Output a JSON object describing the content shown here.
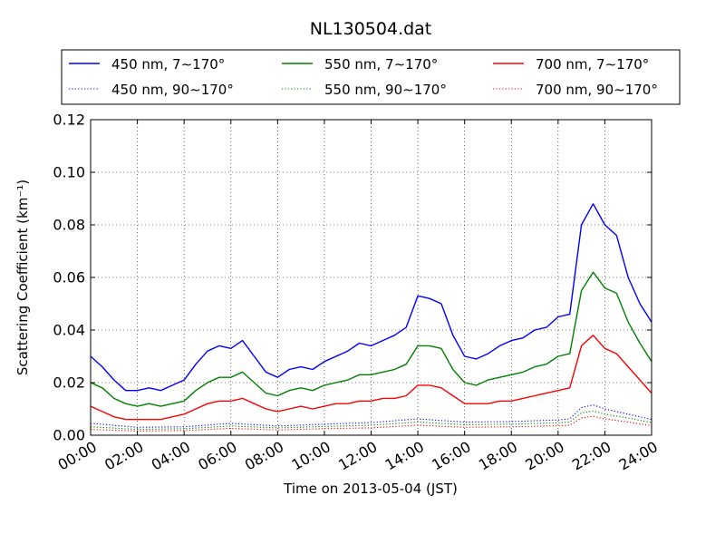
{
  "chart_data": {
    "type": "line",
    "title": "NL130504.dat",
    "xlabel": "Time on 2013-05-04 (JST)",
    "ylabel": "Scattering Coefficient (km⁻¹)",
    "xlim": [
      "00:00",
      "24:00"
    ],
    "ylim": [
      0,
      0.12
    ],
    "x_ticks": [
      "00:00",
      "02:00",
      "04:00",
      "06:00",
      "08:00",
      "10:00",
      "12:00",
      "14:00",
      "16:00",
      "18:00",
      "20:00",
      "22:00",
      "24:00"
    ],
    "y_ticks": [
      "0.00",
      "0.02",
      "0.04",
      "0.06",
      "0.08",
      "0.10",
      "0.12"
    ],
    "grid": true,
    "legend_position": "top (above plot), 3 columns",
    "series": [
      {
        "name": "450 nm, 7∼170°",
        "color": "#0000ff",
        "style": "solid",
        "x": [
          "00:00",
          "00:30",
          "01:00",
          "01:30",
          "02:00",
          "02:30",
          "03:00",
          "03:30",
          "04:00",
          "04:30",
          "05:00",
          "05:30",
          "06:00",
          "06:30",
          "07:00",
          "07:30",
          "08:00",
          "08:30",
          "09:00",
          "09:30",
          "10:00",
          "10:30",
          "11:00",
          "11:30",
          "12:00",
          "12:30",
          "13:00",
          "13:30",
          "14:00",
          "14:30",
          "15:00",
          "15:30",
          "16:00",
          "16:30",
          "17:00",
          "17:30",
          "18:00",
          "18:30",
          "19:00",
          "19:30",
          "20:00",
          "20:30",
          "21:00",
          "21:30",
          "22:00",
          "22:30",
          "23:00",
          "23:30",
          "24:00"
        ],
        "values": [
          0.03,
          0.026,
          0.021,
          0.017,
          0.017,
          0.018,
          0.017,
          0.019,
          0.021,
          0.027,
          0.032,
          0.034,
          0.033,
          0.036,
          0.03,
          0.024,
          0.022,
          0.025,
          0.026,
          0.025,
          0.028,
          0.03,
          0.032,
          0.035,
          0.034,
          0.036,
          0.038,
          0.041,
          0.053,
          0.052,
          0.05,
          0.038,
          0.03,
          0.029,
          0.031,
          0.034,
          0.036,
          0.037,
          0.04,
          0.041,
          0.045,
          0.046,
          0.08,
          0.088,
          0.08,
          0.076,
          0.06,
          0.05,
          0.043
        ]
      },
      {
        "name": "550 nm, 7∼170°",
        "color": "#008000",
        "style": "solid",
        "x": [
          "00:00",
          "00:30",
          "01:00",
          "01:30",
          "02:00",
          "02:30",
          "03:00",
          "03:30",
          "04:00",
          "04:30",
          "05:00",
          "05:30",
          "06:00",
          "06:30",
          "07:00",
          "07:30",
          "08:00",
          "08:30",
          "09:00",
          "09:30",
          "10:00",
          "10:30",
          "11:00",
          "11:30",
          "12:00",
          "12:30",
          "13:00",
          "13:30",
          "14:00",
          "14:30",
          "15:00",
          "15:30",
          "16:00",
          "16:30",
          "17:00",
          "17:30",
          "18:00",
          "18:30",
          "19:00",
          "19:30",
          "20:00",
          "20:30",
          "21:00",
          "21:30",
          "22:00",
          "22:30",
          "23:00",
          "23:30",
          "24:00"
        ],
        "values": [
          0.02,
          0.018,
          0.014,
          0.012,
          0.011,
          0.012,
          0.011,
          0.012,
          0.013,
          0.017,
          0.02,
          0.022,
          0.022,
          0.024,
          0.02,
          0.016,
          0.015,
          0.017,
          0.018,
          0.017,
          0.019,
          0.02,
          0.021,
          0.023,
          0.023,
          0.024,
          0.025,
          0.027,
          0.034,
          0.034,
          0.033,
          0.025,
          0.02,
          0.019,
          0.021,
          0.022,
          0.023,
          0.024,
          0.026,
          0.027,
          0.03,
          0.031,
          0.055,
          0.062,
          0.056,
          0.054,
          0.043,
          0.035,
          0.028
        ]
      },
      {
        "name": "700 nm, 7∼170°",
        "color": "#ff0000",
        "style": "solid",
        "x": [
          "00:00",
          "00:30",
          "01:00",
          "01:30",
          "02:00",
          "02:30",
          "03:00",
          "03:30",
          "04:00",
          "04:30",
          "05:00",
          "05:30",
          "06:00",
          "06:30",
          "07:00",
          "07:30",
          "08:00",
          "08:30",
          "09:00",
          "09:30",
          "10:00",
          "10:30",
          "11:00",
          "11:30",
          "12:00",
          "12:30",
          "13:00",
          "13:30",
          "14:00",
          "14:30",
          "15:00",
          "15:30",
          "16:00",
          "16:30",
          "17:00",
          "17:30",
          "18:00",
          "18:30",
          "19:00",
          "19:30",
          "20:00",
          "20:30",
          "21:00",
          "21:30",
          "22:00",
          "22:30",
          "23:00",
          "23:30",
          "24:00"
        ],
        "values": [
          0.011,
          0.009,
          0.007,
          0.006,
          0.006,
          0.006,
          0.006,
          0.007,
          0.008,
          0.01,
          0.012,
          0.013,
          0.013,
          0.014,
          0.012,
          0.01,
          0.009,
          0.01,
          0.011,
          0.01,
          0.011,
          0.012,
          0.012,
          0.013,
          0.013,
          0.014,
          0.014,
          0.015,
          0.019,
          0.019,
          0.018,
          0.015,
          0.012,
          0.012,
          0.012,
          0.013,
          0.013,
          0.014,
          0.015,
          0.016,
          0.017,
          0.018,
          0.034,
          0.038,
          0.033,
          0.031,
          0.026,
          0.021,
          0.016
        ]
      },
      {
        "name": "450 nm, 90∼170°",
        "color": "#0000ff",
        "style": "dotted",
        "x": [
          "00:00",
          "02:00",
          "04:00",
          "06:00",
          "08:00",
          "10:00",
          "12:00",
          "14:00",
          "16:00",
          "18:00",
          "20:00",
          "20:30",
          "21:00",
          "21:30",
          "22:00",
          "23:00",
          "24:00"
        ],
        "values": [
          0.0045,
          0.003,
          0.0032,
          0.0045,
          0.0035,
          0.0042,
          0.0048,
          0.0062,
          0.005,
          0.0052,
          0.0058,
          0.0062,
          0.0105,
          0.0115,
          0.01,
          0.008,
          0.006
        ]
      },
      {
        "name": "550 nm, 90∼170°",
        "color": "#008000",
        "style": "dotted",
        "x": [
          "00:00",
          "02:00",
          "04:00",
          "06:00",
          "08:00",
          "10:00",
          "12:00",
          "14:00",
          "16:00",
          "18:00",
          "20:00",
          "20:30",
          "21:00",
          "21:30",
          "22:00",
          "23:00",
          "24:00"
        ],
        "values": [
          0.0032,
          0.0022,
          0.0025,
          0.0035,
          0.0028,
          0.0033,
          0.0038,
          0.005,
          0.004,
          0.0042,
          0.0047,
          0.005,
          0.0085,
          0.0092,
          0.008,
          0.0065,
          0.0048
        ]
      },
      {
        "name": "700 nm, 90∼170°",
        "color": "#ff0000",
        "style": "dotted",
        "x": [
          "00:00",
          "02:00",
          "04:00",
          "06:00",
          "08:00",
          "10:00",
          "12:00",
          "14:00",
          "16:00",
          "18:00",
          "20:00",
          "20:30",
          "21:00",
          "21:30",
          "22:00",
          "23:00",
          "24:00"
        ],
        "values": [
          0.0022,
          0.0016,
          0.0018,
          0.0026,
          0.002,
          0.0025,
          0.0028,
          0.0038,
          0.003,
          0.0032,
          0.0036,
          0.0038,
          0.0065,
          0.0072,
          0.0062,
          0.005,
          0.0036
        ]
      }
    ]
  }
}
